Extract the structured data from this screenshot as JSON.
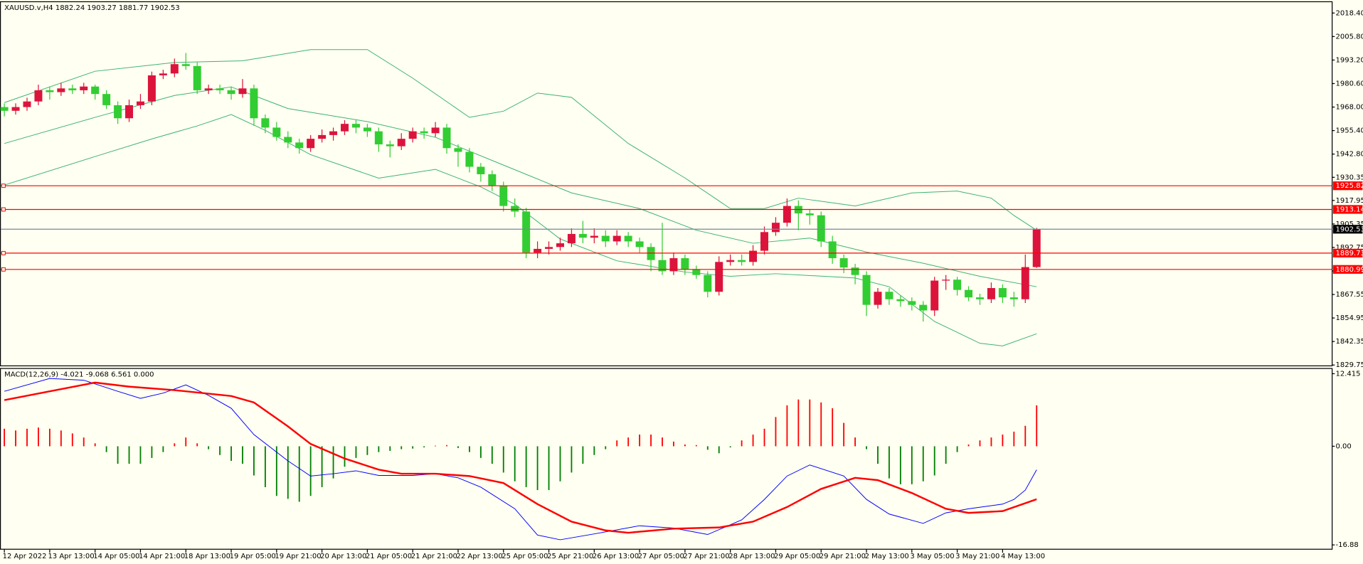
{
  "chart_data": [
    {
      "type": "candlestick",
      "title": "XAUUSD.v,H4  1882.24 1903.27 1881.77 1902.53",
      "up_color": "#dc143c",
      "down_color": "#32cd32",
      "candles": [
        [
          1968,
          1970,
          1963,
          1966
        ],
        [
          1966,
          1970,
          1964,
          1968
        ],
        [
          1968,
          1973,
          1966,
          1971
        ],
        [
          1971,
          1980,
          1969,
          1977
        ],
        [
          1977,
          1979,
          1972,
          1976
        ],
        [
          1976,
          1981,
          1974,
          1978
        ],
        [
          1978,
          1980,
          1975,
          1977
        ],
        [
          1977,
          1981,
          1975,
          1979
        ],
        [
          1979,
          1980,
          1972,
          1975
        ],
        [
          1975,
          1977,
          1967,
          1969
        ],
        [
          1969,
          1971,
          1959,
          1962
        ],
        [
          1962,
          1972,
          1960,
          1969
        ],
        [
          1969,
          1975,
          1967,
          1971
        ],
        [
          1971,
          1987,
          1969,
          1985
        ],
        [
          1985,
          1988,
          1983,
          1986
        ],
        [
          1986,
          1994,
          1984,
          1991
        ],
        [
          1991,
          1997,
          1988,
          1990
        ],
        [
          1990,
          1992,
          1975,
          1977
        ],
        [
          1977,
          1980,
          1975,
          1978
        ],
        [
          1978,
          1980,
          1975,
          1977
        ],
        [
          1977,
          1979,
          1972,
          1975
        ],
        [
          1975,
          1983,
          1973,
          1978
        ],
        [
          1978,
          1980,
          1958,
          1962
        ],
        [
          1962,
          1964,
          1954,
          1957
        ],
        [
          1957,
          1960,
          1950,
          1952
        ],
        [
          1952,
          1955,
          1946,
          1949
        ],
        [
          1949,
          1951,
          1943,
          1946
        ],
        [
          1946,
          1953,
          1944,
          1951
        ],
        [
          1951,
          1956,
          1949,
          1953
        ],
        [
          1953,
          1957,
          1950,
          1955
        ],
        [
          1955,
          1961,
          1953,
          1959
        ],
        [
          1959,
          1961,
          1954,
          1957
        ],
        [
          1957,
          1959,
          1952,
          1955
        ],
        [
          1955,
          1957,
          1944,
          1948
        ],
        [
          1948,
          1950,
          1941,
          1947
        ],
        [
          1947,
          1954,
          1945,
          1951
        ],
        [
          1951,
          1957,
          1949,
          1955
        ],
        [
          1955,
          1957,
          1951,
          1954
        ],
        [
          1954,
          1960,
          1952,
          1957
        ],
        [
          1957,
          1959,
          1943,
          1946
        ],
        [
          1946,
          1948,
          1936,
          1944
        ],
        [
          1944,
          1946,
          1933,
          1936
        ],
        [
          1936,
          1938,
          1928,
          1932
        ],
        [
          1932,
          1934,
          1923,
          1926
        ],
        [
          1926,
          1928,
          1912,
          1915
        ],
        [
          1915,
          1919,
          1909,
          1912
        ],
        [
          1912,
          1914,
          1887,
          1890
        ],
        [
          1890,
          1896,
          1887,
          1892
        ],
        [
          1892,
          1896,
          1889,
          1893
        ],
        [
          1893,
          1898,
          1891,
          1895
        ],
        [
          1895,
          1903,
          1893,
          1900
        ],
        [
          1900,
          1907,
          1895,
          1898
        ],
        [
          1898,
          1903,
          1895,
          1899
        ],
        [
          1899,
          1902,
          1893,
          1896
        ],
        [
          1896,
          1902,
          1894,
          1899
        ],
        [
          1899,
          1901,
          1893,
          1896
        ],
        [
          1896,
          1898,
          1890,
          1893
        ],
        [
          1893,
          1895,
          1880,
          1886
        ],
        [
          1886,
          1906,
          1878,
          1880
        ],
        [
          1880,
          1890,
          1878,
          1887
        ],
        [
          1887,
          1889,
          1878,
          1881
        ],
        [
          1881,
          1883,
          1876,
          1878
        ],
        [
          1878,
          1880,
          1866,
          1869
        ],
        [
          1869,
          1888,
          1867,
          1885
        ],
        [
          1885,
          1889,
          1883,
          1886
        ],
        [
          1886,
          1889,
          1883,
          1885
        ],
        [
          1885,
          1894,
          1883,
          1891
        ],
        [
          1891,
          1904,
          1889,
          1901
        ],
        [
          1901,
          1909,
          1899,
          1906
        ],
        [
          1906,
          1919,
          1904,
          1915
        ],
        [
          1915,
          1918,
          1902,
          1911
        ],
        [
          1911,
          1913,
          1905,
          1910
        ],
        [
          1910,
          1912,
          1893,
          1896
        ],
        [
          1896,
          1899,
          1884,
          1887
        ],
        [
          1887,
          1889,
          1879,
          1882
        ],
        [
          1882,
          1884,
          1873,
          1878
        ],
        [
          1878,
          1880,
          1856,
          1862
        ],
        [
          1862,
          1871,
          1860,
          1869
        ],
        [
          1869,
          1871,
          1862,
          1865
        ],
        [
          1865,
          1867,
          1861,
          1864
        ],
        [
          1864,
          1866,
          1859,
          1862
        ],
        [
          1862,
          1864,
          1853,
          1859
        ],
        [
          1859,
          1877,
          1856,
          1875
        ],
        [
          1875,
          1878,
          1870,
          1875.5
        ],
        [
          1875.5,
          1877,
          1867,
          1870
        ],
        [
          1870,
          1872,
          1864,
          1866
        ],
        [
          1866,
          1868,
          1862,
          1865
        ],
        [
          1865,
          1874,
          1863,
          1871
        ],
        [
          1871,
          1873,
          1863,
          1866
        ],
        [
          1866,
          1869,
          1861,
          1865
        ],
        [
          1865,
          1889,
          1863,
          1882.24
        ],
        [
          1882.24,
          1903.27,
          1881.77,
          1902.53
        ]
      ],
      "band_color": "#3cb371",
      "bands": [
        {
          "x": [
            0,
            8,
            15,
            21,
            27,
            32,
            36,
            41,
            44,
            47,
            50,
            55,
            60,
            64,
            67,
            70,
            75,
            80,
            84,
            87,
            89,
            91
          ],
          "values": [
            1970.4,
            1987.2,
            1991.9,
            1992.8,
            1998.8,
            1998.8,
            1983.5,
            1962.5,
            1965.8,
            1975.5,
            1973.2,
            1948.5,
            1930,
            1913.6,
            1913.6,
            1919.2,
            1915,
            1922,
            1923,
            1919.2,
            1909.9,
            1902
          ]
        },
        {
          "x": [
            0,
            8,
            15,
            20,
            25,
            32,
            38,
            44,
            50,
            56,
            61,
            66,
            71,
            76,
            81,
            86,
            91
          ],
          "values": [
            1948.5,
            1962.5,
            1974.2,
            1978.8,
            1967.2,
            1960.2,
            1951.8,
            1936.9,
            1922,
            1913.6,
            1902,
            1895,
            1897.8,
            1890.3,
            1884.3,
            1877.3,
            1871.7
          ]
        },
        {
          "x": [
            0,
            8,
            13,
            17,
            20,
            23,
            27,
            33,
            38,
            42,
            45,
            49,
            54,
            60,
            64,
            68,
            75,
            78,
            82,
            86,
            88,
            91
          ],
          "values": [
            1926.2,
            1941.5,
            1950.9,
            1957.9,
            1964,
            1955.5,
            1942.5,
            1929.9,
            1934.6,
            1925.2,
            1915.9,
            1897.3,
            1885.6,
            1879.6,
            1877.3,
            1878.7,
            1876.4,
            1871.7,
            1853.1,
            1841.4,
            1840,
            1846.5
          ]
        }
      ],
      "levels": [
        1925.82,
        1913.14,
        1889.73,
        1880.99
      ],
      "level_color": "#ff0000",
      "last_price": 1902.53,
      "last_price_color": "#778899",
      "ylim": [
        1829.3,
        2024.45
      ],
      "yticks": [
        {
          "value": 2018.4,
          "label": "2018.40"
        },
        {
          "value": 2005.8,
          "label": "2005.80"
        },
        {
          "value": 1993.2,
          "label": "1993.20"
        },
        {
          "value": 1980.6,
          "label": "1980.60"
        },
        {
          "value": 1968,
          "label": "1968.00"
        },
        {
          "value": 1955.4,
          "label": "1955.40"
        },
        {
          "value": 1942.8,
          "label": "1942.80"
        },
        {
          "value": 1930.35,
          "label": "1930.35"
        },
        {
          "value": 1917.95,
          "label": "1917.95"
        },
        {
          "value": 1905.35,
          "label": "1905.35"
        },
        {
          "value": 1892.75,
          "label": "1892.75"
        },
        {
          "value": 1880.15,
          "label": "1880.15"
        },
        {
          "value": 1867.55,
          "label": "1867.55"
        },
        {
          "value": 1854.95,
          "label": "1854.95"
        },
        {
          "value": 1842.35,
          "label": "1842.35"
        },
        {
          "value": 1829.75,
          "label": "1829.75"
        }
      ],
      "categories": [
        "12 Apr 2022",
        null,
        null,
        null,
        "13 Apr 13:00",
        null,
        null,
        null,
        "14 Apr 05:00",
        null,
        null,
        null,
        "14 Apr 21:00",
        null,
        null,
        null,
        "18 Apr 13:00",
        null,
        null,
        null,
        "19 Apr 05:00",
        null,
        null,
        null,
        "19 Apr 21:00",
        null,
        null,
        null,
        "20 Apr 13:00",
        null,
        null,
        null,
        "21 Apr 05:00",
        null,
        null,
        null,
        "21 Apr 21:00",
        null,
        null,
        null,
        "22 Apr 13:00",
        null,
        null,
        null,
        "25 Apr 05:00",
        null,
        null,
        null,
        "25 Apr 21:00",
        null,
        null,
        null,
        "26 Apr 13:00",
        null,
        null,
        null,
        "27 Apr 05:00",
        null,
        null,
        null,
        "27 Apr 21:00",
        null,
        null,
        null,
        "28 Apr 13:00",
        null,
        null,
        null,
        "29 Apr 05:00",
        null,
        null,
        null,
        "29 Apr 21:00",
        null,
        null,
        null,
        "2 May 13:00",
        null,
        null,
        null,
        "3 May 05:00",
        null,
        null,
        null,
        "3 May 21:00",
        null,
        null,
        null,
        "4 May 13:00",
        null,
        null,
        null
      ]
    },
    {
      "type": "macd",
      "title": "MACD(12,26,9) -4.021 -9.068 6.561 0.000",
      "histogram": {
        "up_color": "#ff0000",
        "down_color": "#008000",
        "values": [
          3.0,
          2.7,
          3.0,
          3.2,
          3.0,
          2.7,
          2.2,
          1.5,
          0.5,
          -1,
          -3,
          -3,
          -3,
          -2,
          -1,
          0.5,
          1.5,
          0.5,
          -0.5,
          -1.5,
          -2.5,
          -3,
          -5,
          -7,
          -8.5,
          -9,
          -9.5,
          -8.5,
          -7,
          -5.5,
          -3.5,
          -2,
          -1.5,
          -1,
          -0.8,
          -0.5,
          -0.4,
          -0.2,
          0.1,
          0.2,
          -0.3,
          -1,
          -2,
          -3,
          -4.5,
          -6,
          -7,
          -7.5,
          -7.5,
          -6,
          -4.5,
          -3,
          -1.5,
          -0.5,
          1,
          1.5,
          2,
          2,
          1.5,
          0.8,
          0.3,
          0.2,
          -0.6,
          -1.2,
          -0.2,
          1,
          2,
          3,
          5,
          7,
          8,
          8,
          7.5,
          6.5,
          4,
          1.5,
          -0.5,
          -3,
          -5.5,
          -6.5,
          -6.5,
          -6,
          -5,
          -3,
          -1,
          0.3,
          1,
          1.5,
          2,
          2.5,
          3.5,
          7
        ]
      },
      "macd": {
        "color": "#0000ff",
        "x": [
          0,
          4,
          7,
          10,
          12,
          14,
          16,
          18,
          20,
          22,
          25,
          27,
          29,
          31,
          33,
          36,
          38,
          40,
          42,
          45,
          47,
          49,
          52,
          56,
          59,
          62,
          65,
          67,
          69,
          71,
          74,
          76,
          78,
          81,
          83,
          85,
          88,
          89,
          90,
          91
        ],
        "values": [
          9.4,
          11.6,
          11.3,
          9.4,
          8.2,
          9.1,
          10.5,
          8.7,
          6.5,
          2.0,
          -2.5,
          -5.1,
          -4.7,
          -4.2,
          -5.0,
          -5.0,
          -4.7,
          -5.4,
          -7.0,
          -10.7,
          -15.2,
          -16.0,
          -15.0,
          -13.6,
          -14.0,
          -15.1,
          -12.6,
          -9.1,
          -5.1,
          -3.2,
          -5.1,
          -9.1,
          -11.6,
          -13.2,
          -11.4,
          -10.7,
          -9.9,
          -9.1,
          -7.5,
          -4.021
        ]
      },
      "signal": {
        "color": "#ff0000",
        "x": [
          0,
          4,
          8,
          11,
          15,
          20,
          22,
          25,
          27,
          30,
          33,
          35,
          38,
          41,
          44,
          47,
          50,
          53,
          55,
          59,
          63,
          66,
          69,
          72,
          75,
          77,
          80,
          83,
          85,
          88,
          91
        ],
        "values": [
          7.9,
          9.4,
          10.9,
          10.2,
          9.6,
          8.6,
          7.5,
          3.4,
          0.4,
          -2.1,
          -4.0,
          -4.7,
          -4.7,
          -5.1,
          -6.3,
          -9.9,
          -12.9,
          -14.4,
          -14.8,
          -14.1,
          -13.9,
          -12.9,
          -10.4,
          -7.3,
          -5.4,
          -5.8,
          -8.0,
          -10.7,
          -11.4,
          -11.1,
          -9.068
        ]
      },
      "ylim": [
        -17.62,
        13.31
      ],
      "yticks": [
        12.415,
        {
          "value": 0,
          "label": "0.00"
        },
        -16.88
      ]
    }
  ]
}
